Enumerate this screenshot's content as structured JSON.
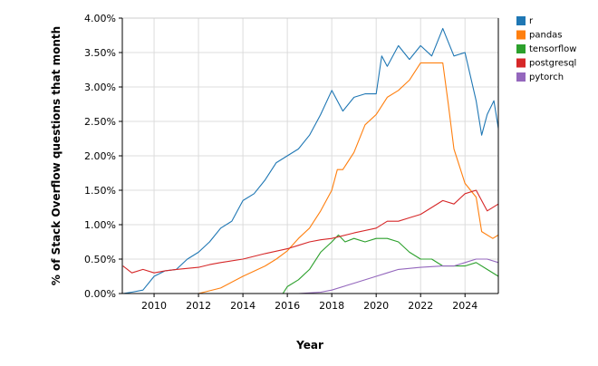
{
  "chart_data": {
    "type": "line",
    "title": "",
    "xlabel": "Year",
    "ylabel": "% of Stack Overflow questions that month",
    "xlim": [
      2008.57,
      2025.5
    ],
    "ylim": [
      0,
      4
    ],
    "grid": true,
    "legend_position": "top-right (outside)",
    "x_ticks": [
      "2010",
      "2012",
      "2014",
      "2016",
      "2018",
      "2020",
      "2022",
      "2024"
    ],
    "x_tick_values": [
      2010,
      2012,
      2014,
      2016,
      2018,
      2020,
      2022,
      2024
    ],
    "y_ticks": [
      "0.00%",
      "0.50%",
      "1.00%",
      "1.50%",
      "2.00%",
      "2.50%",
      "3.00%",
      "3.50%",
      "4.00%"
    ],
    "y_tick_values": [
      0,
      0.5,
      1,
      1.5,
      2,
      2.5,
      3,
      3.5,
      4
    ],
    "series": [
      {
        "name": "r",
        "color": "#1f77b4",
        "x": [
          2008.6,
          2009,
          2009.5,
          2010,
          2010.5,
          2011,
          2011.5,
          2012,
          2012.5,
          2013,
          2013.5,
          2014,
          2014.5,
          2015,
          2015.5,
          2016,
          2016.5,
          2017,
          2017.5,
          2018,
          2018.5,
          2019,
          2019.5,
          2020,
          2020.25,
          2020.5,
          2021,
          2021.5,
          2022,
          2022.5,
          2023,
          2023.5,
          2024,
          2024.5,
          2024.75,
          2025,
          2025.3,
          2025.5
        ],
        "y": [
          0.0,
          0.02,
          0.05,
          0.25,
          0.33,
          0.35,
          0.5,
          0.6,
          0.75,
          0.95,
          1.05,
          1.35,
          1.45,
          1.65,
          1.9,
          2.0,
          2.1,
          2.3,
          2.6,
          2.95,
          2.65,
          2.85,
          2.9,
          2.9,
          3.45,
          3.3,
          3.6,
          3.4,
          3.6,
          3.45,
          3.85,
          3.45,
          3.5,
          2.8,
          2.3,
          2.6,
          2.8,
          2.4
        ]
      },
      {
        "name": "pandas",
        "color": "#ff7f0e",
        "x": [
          2012,
          2013,
          2014,
          2015,
          2015.5,
          2016,
          2016.5,
          2017,
          2017.5,
          2018,
          2018.25,
          2018.5,
          2019,
          2019.5,
          2020,
          2020.5,
          2021,
          2021.5,
          2022,
          2022.5,
          2023,
          2023.25,
          2023.5,
          2024,
          2024.5,
          2024.75,
          2025.25,
          2025.5
        ],
        "y": [
          0,
          0.08,
          0.25,
          0.4,
          0.5,
          0.62,
          0.8,
          0.95,
          1.2,
          1.5,
          1.8,
          1.8,
          2.05,
          2.45,
          2.6,
          2.85,
          2.95,
          3.1,
          3.35,
          3.35,
          3.35,
          2.75,
          2.1,
          1.6,
          1.4,
          0.9,
          0.8,
          0.85
        ]
      },
      {
        "name": "tensorflow",
        "color": "#2ca02c",
        "x": [
          2015.8,
          2016,
          2016.5,
          2017,
          2017.5,
          2018,
          2018.3,
          2018.6,
          2019,
          2019.5,
          2020,
          2020.5,
          2021,
          2021.5,
          2022,
          2022.5,
          2023,
          2023.5,
          2024,
          2024.5,
          2025,
          2025.5
        ],
        "y": [
          0,
          0.1,
          0.2,
          0.35,
          0.6,
          0.75,
          0.85,
          0.75,
          0.8,
          0.75,
          0.8,
          0.8,
          0.75,
          0.6,
          0.5,
          0.5,
          0.4,
          0.4,
          0.4,
          0.45,
          0.35,
          0.25
        ]
      },
      {
        "name": "postgresql",
        "color": "#d62728",
        "x": [
          2008.6,
          2009,
          2009.5,
          2010,
          2010.5,
          2011,
          2012,
          2012.5,
          2013,
          2014,
          2015,
          2016,
          2016.5,
          2017,
          2017.5,
          2018,
          2019,
          2020,
          2020.5,
          2021,
          2021.5,
          2022,
          2022.5,
          2023,
          2023.5,
          2024,
          2024.5,
          2025,
          2025.5
        ],
        "y": [
          0.4,
          0.3,
          0.35,
          0.3,
          0.33,
          0.35,
          0.38,
          0.42,
          0.45,
          0.5,
          0.58,
          0.65,
          0.7,
          0.75,
          0.78,
          0.8,
          0.88,
          0.95,
          1.05,
          1.05,
          1.1,
          1.15,
          1.25,
          1.35,
          1.3,
          1.45,
          1.5,
          1.2,
          1.3
        ]
      },
      {
        "name": "pytorch",
        "color": "#9467bd",
        "x": [
          2016.5,
          2017.5,
          2018,
          2019,
          2020,
          2020.5,
          2021,
          2022,
          2023,
          2023.5,
          2024,
          2024.5,
          2025,
          2025.5
        ],
        "y": [
          0,
          0.02,
          0.05,
          0.15,
          0.25,
          0.3,
          0.35,
          0.38,
          0.4,
          0.4,
          0.45,
          0.5,
          0.5,
          0.45
        ]
      }
    ]
  }
}
